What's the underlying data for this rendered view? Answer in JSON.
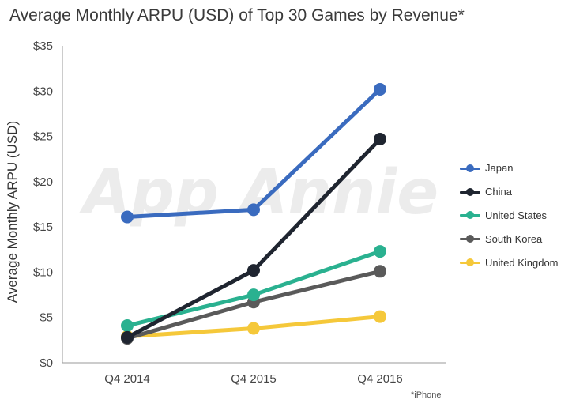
{
  "chart_data": {
    "type": "line",
    "title": "Average Monthly ARPU (USD) of Top 30 Games by Revenue*",
    "xlabel": "",
    "ylabel": "Average Monthly ARPU (USD)",
    "categories": [
      "Q4 2014",
      "Q4 2015",
      "Q4 2016"
    ],
    "ylim": [
      0,
      35
    ],
    "yticks": [
      0,
      5,
      10,
      15,
      20,
      25,
      30,
      35
    ],
    "ytick_labels": [
      "$0",
      "$5",
      "$10",
      "$15",
      "$20",
      "$25",
      "$30",
      "$35"
    ],
    "series": [
      {
        "name": "Japan",
        "color": "#3a6bbf",
        "values": [
          16.1,
          16.9,
          30.2
        ]
      },
      {
        "name": "China",
        "color": "#1f2530",
        "values": [
          2.8,
          10.2,
          24.7
        ]
      },
      {
        "name": "United States",
        "color": "#2ab190",
        "values": [
          4.1,
          7.5,
          12.3
        ]
      },
      {
        "name": "South Korea",
        "color": "#5a5a5a",
        "values": [
          2.7,
          6.7,
          10.1
        ]
      },
      {
        "name": "United Kingdom",
        "color": "#f5c83a",
        "values": [
          2.9,
          3.8,
          5.1
        ]
      }
    ],
    "legend_position": "right",
    "grid": false,
    "footnote": "*iPhone",
    "watermark": "App Annie"
  }
}
